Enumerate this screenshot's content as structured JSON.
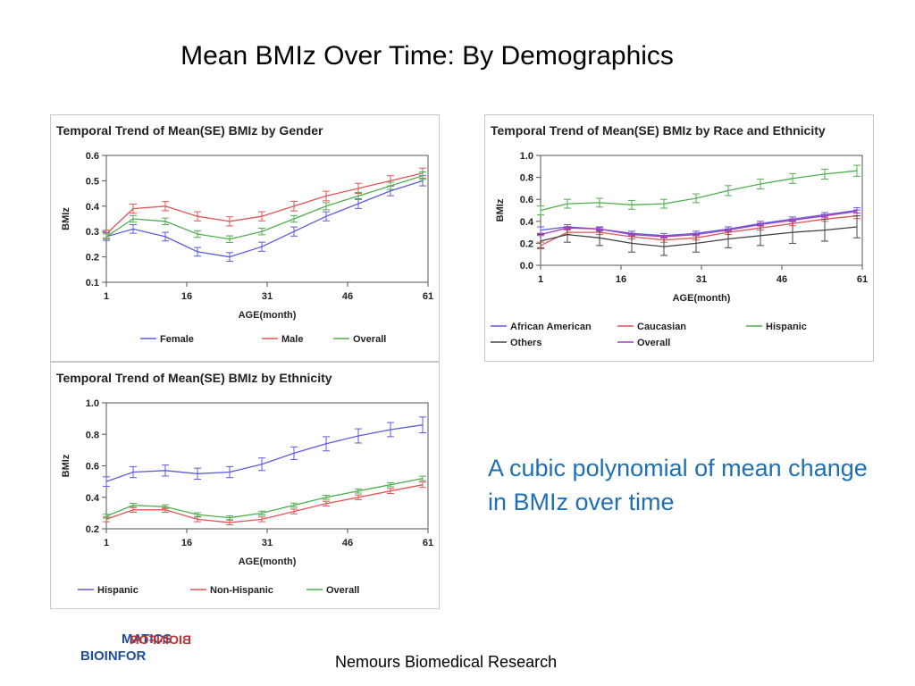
{
  "slide": {
    "title": "Mean BMIz Over Time: By Demographics",
    "caption": "A cubic polynomial of mean change in BMIz over time",
    "footer": "Nemours Biomedical Research",
    "logo_text_top": "MATICS",
    "logo_text_bottom": "BIOINFOR",
    "logo_text_mirror": "BIOINFOR"
  },
  "chart_data": [
    {
      "type": "line",
      "title": "Temporal Trend of Mean(SE) BMIz by Gender",
      "xlabel": "AGE(month)",
      "ylabel": "BMIz",
      "x": [
        1,
        6,
        12,
        18,
        24,
        30,
        36,
        42,
        48,
        54,
        60
      ],
      "xticks": [
        1,
        16,
        31,
        46,
        61
      ],
      "yticks": [
        "0.1",
        "0.2",
        "0.3",
        "0.4",
        "0.5",
        "0.6"
      ],
      "xlim": [
        1,
        61
      ],
      "ylim": [
        0.1,
        0.6
      ],
      "legend_position": "bottom",
      "series": [
        {
          "name": "Female",
          "color": "#5b5be0",
          "values": [
            0.28,
            0.31,
            0.28,
            0.22,
            0.2,
            0.24,
            0.3,
            0.36,
            0.41,
            0.46,
            0.5
          ],
          "error": [
            0.015,
            0.017,
            0.017,
            0.017,
            0.017,
            0.018,
            0.018,
            0.018,
            0.019,
            0.019,
            0.02
          ]
        },
        {
          "name": "Male",
          "color": "#e05454",
          "values": [
            0.29,
            0.39,
            0.4,
            0.36,
            0.34,
            0.36,
            0.4,
            0.44,
            0.47,
            0.5,
            0.53
          ],
          "error": [
            0.015,
            0.018,
            0.018,
            0.018,
            0.018,
            0.018,
            0.019,
            0.019,
            0.02,
            0.02,
            0.02
          ]
        },
        {
          "name": "Overall",
          "color": "#4fae4f",
          "values": [
            0.28,
            0.35,
            0.34,
            0.29,
            0.27,
            0.3,
            0.35,
            0.4,
            0.44,
            0.48,
            0.52
          ],
          "error": [
            0.01,
            0.013,
            0.013,
            0.013,
            0.013,
            0.013,
            0.013,
            0.014,
            0.014,
            0.014,
            0.015
          ]
        }
      ]
    },
    {
      "type": "line",
      "title": "Temporal Trend of Mean(SE) BMIz by Race and Ethnicity",
      "xlabel": "AGE(month)",
      "ylabel": "BMIz",
      "x": [
        1,
        6,
        12,
        18,
        24,
        30,
        36,
        42,
        48,
        54,
        60
      ],
      "xticks": [
        1,
        16,
        31,
        46,
        61
      ],
      "yticks": [
        "0.0",
        "0.2",
        "0.4",
        "0.6",
        "0.8",
        "1.0"
      ],
      "xlim": [
        1,
        61
      ],
      "ylim": [
        0.0,
        1.0
      ],
      "legend_position": "bottom",
      "series": [
        {
          "name": "African American",
          "color": "#5b5be0",
          "values": [
            0.32,
            0.35,
            0.33,
            0.29,
            0.27,
            0.29,
            0.33,
            0.38,
            0.42,
            0.46,
            0.5
          ],
          "error": [
            0.03,
            0.02,
            0.02,
            0.02,
            0.02,
            0.02,
            0.02,
            0.02,
            0.02,
            0.02,
            0.025
          ]
        },
        {
          "name": "Caucasian",
          "color": "#e05454",
          "values": [
            0.18,
            0.3,
            0.3,
            0.26,
            0.23,
            0.25,
            0.3,
            0.34,
            0.38,
            0.42,
            0.45
          ],
          "error": [
            0.03,
            0.02,
            0.02,
            0.02,
            0.02,
            0.02,
            0.02,
            0.02,
            0.02,
            0.02,
            0.025
          ]
        },
        {
          "name": "Hispanic",
          "color": "#4fae4f",
          "values": [
            0.5,
            0.56,
            0.57,
            0.55,
            0.56,
            0.61,
            0.68,
            0.74,
            0.79,
            0.83,
            0.86
          ],
          "error": [
            0.04,
            0.04,
            0.04,
            0.04,
            0.04,
            0.04,
            0.045,
            0.045,
            0.045,
            0.045,
            0.05
          ]
        },
        {
          "name": "Others",
          "color": "#444444",
          "values": [
            0.22,
            0.28,
            0.25,
            0.2,
            0.17,
            0.2,
            0.24,
            0.27,
            0.3,
            0.32,
            0.35
          ],
          "error": [
            0.06,
            0.07,
            0.07,
            0.08,
            0.08,
            0.08,
            0.08,
            0.09,
            0.1,
            0.1,
            0.1
          ]
        },
        {
          "name": "Overall",
          "color": "#a040c0",
          "values": [
            0.28,
            0.34,
            0.33,
            0.28,
            0.26,
            0.28,
            0.32,
            0.37,
            0.41,
            0.45,
            0.49
          ],
          "error": [
            0.01,
            0.012,
            0.012,
            0.012,
            0.012,
            0.012,
            0.012,
            0.013,
            0.013,
            0.013,
            0.014
          ]
        }
      ]
    },
    {
      "type": "line",
      "title": "Temporal Trend of Mean(SE) BMIz by Ethnicity",
      "xlabel": "AGE(month)",
      "ylabel": "BMIz",
      "x": [
        1,
        6,
        12,
        18,
        24,
        30,
        36,
        42,
        48,
        54,
        60
      ],
      "xticks": [
        1,
        16,
        31,
        46,
        61
      ],
      "yticks": [
        "0.2",
        "0.4",
        "0.6",
        "0.8",
        "1.0"
      ],
      "xlim": [
        1,
        61
      ],
      "ylim": [
        0.2,
        1.0
      ],
      "legend_position": "bottom",
      "series": [
        {
          "name": "Hispanic",
          "color": "#5b5be0",
          "values": [
            0.5,
            0.56,
            0.57,
            0.55,
            0.56,
            0.61,
            0.68,
            0.74,
            0.79,
            0.83,
            0.86
          ],
          "error": [
            0.03,
            0.035,
            0.035,
            0.035,
            0.035,
            0.04,
            0.04,
            0.045,
            0.045,
            0.045,
            0.05
          ]
        },
        {
          "name": "Non-Hispanic",
          "color": "#e05454",
          "values": [
            0.26,
            0.32,
            0.32,
            0.26,
            0.24,
            0.26,
            0.31,
            0.36,
            0.4,
            0.44,
            0.48
          ],
          "error": [
            0.015,
            0.015,
            0.015,
            0.015,
            0.015,
            0.015,
            0.015,
            0.015,
            0.015,
            0.016,
            0.017
          ]
        },
        {
          "name": "Overall",
          "color": "#4fae4f",
          "values": [
            0.28,
            0.35,
            0.34,
            0.29,
            0.27,
            0.3,
            0.35,
            0.4,
            0.44,
            0.48,
            0.52
          ],
          "error": [
            0.012,
            0.012,
            0.012,
            0.012,
            0.012,
            0.012,
            0.013,
            0.013,
            0.013,
            0.013,
            0.014
          ]
        }
      ]
    }
  ]
}
